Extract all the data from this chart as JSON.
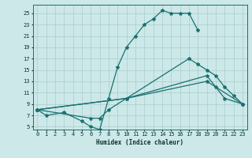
{
  "background_color": "#cce8e8",
  "grid_color": "#aacccc",
  "line_color": "#1a7070",
  "xlabel": "Humidex (Indice chaleur)",
  "xlim": [
    -0.5,
    23.5
  ],
  "ylim": [
    4.5,
    26.5
  ],
  "xticks": [
    0,
    1,
    2,
    3,
    4,
    5,
    6,
    7,
    8,
    9,
    10,
    11,
    12,
    13,
    14,
    15,
    16,
    17,
    18,
    19,
    20,
    21,
    22,
    23
  ],
  "yticks": [
    5,
    7,
    9,
    11,
    13,
    15,
    17,
    19,
    21,
    23,
    25
  ],
  "series": [
    {
      "x": [
        0,
        1,
        3,
        5,
        6,
        7,
        8,
        9,
        10,
        11,
        12,
        13,
        14,
        15,
        16,
        17,
        18
      ],
      "y": [
        8,
        7,
        7.5,
        6,
        5,
        4.5,
        10,
        15.5,
        19,
        21,
        23,
        24,
        25.5,
        25,
        25,
        25,
        22
      ]
    },
    {
      "x": [
        0,
        6,
        7,
        8,
        17,
        18,
        19,
        20,
        21,
        22,
        23
      ],
      "y": [
        8,
        6.5,
        6.5,
        8,
        17,
        16,
        15,
        14,
        12,
        10.5,
        9
      ]
    },
    {
      "x": [
        0,
        10,
        19,
        20,
        21,
        23
      ],
      "y": [
        8,
        10,
        14,
        12,
        10,
        9
      ]
    },
    {
      "x": [
        0,
        10,
        19,
        23
      ],
      "y": [
        8,
        10,
        13,
        9
      ]
    }
  ]
}
